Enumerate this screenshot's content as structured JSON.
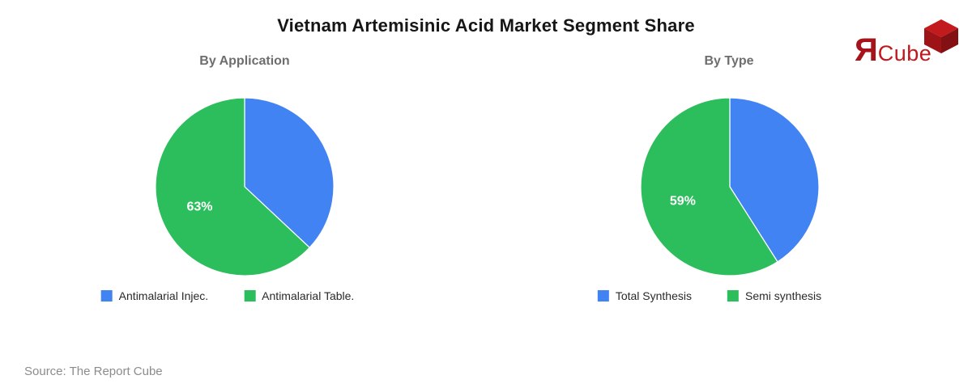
{
  "title": "Vietnam Artemisinic Acid Market Segment Share",
  "source": "Source: The Report Cube",
  "logo": {
    "r_glyph": "Я",
    "name": "Cube",
    "colors": {
      "r": "#a6131a",
      "text": "#c4161d",
      "cube_top": "#c31a1d",
      "cube_left": "#9e1315",
      "cube_right": "#831013"
    }
  },
  "chart_data": [
    {
      "type": "pie",
      "title": "By Application",
      "slices": [
        {
          "label": "Antimalarial Injec.",
          "value": 37,
          "color": "#4183f3",
          "pct_label": ""
        },
        {
          "label": "Antimalarial Table.",
          "value": 63,
          "color": "#2cbe5c",
          "pct_label": "63%"
        }
      ],
      "start_angle_deg": -90,
      "direction": "clockwise",
      "legend_position": "bottom",
      "labels_inside": true,
      "label_color": "#ffffff"
    },
    {
      "type": "pie",
      "title": "By Type",
      "slices": [
        {
          "label": "Total Synthesis",
          "value": 41,
          "color": "#4183f3",
          "pct_label": ""
        },
        {
          "label": "Semi synthesis",
          "value": 59,
          "color": "#2cbe5c",
          "pct_label": "59%"
        }
      ],
      "start_angle_deg": -90,
      "direction": "clockwise",
      "legend_position": "bottom",
      "labels_inside": true,
      "label_color": "#ffffff"
    }
  ]
}
